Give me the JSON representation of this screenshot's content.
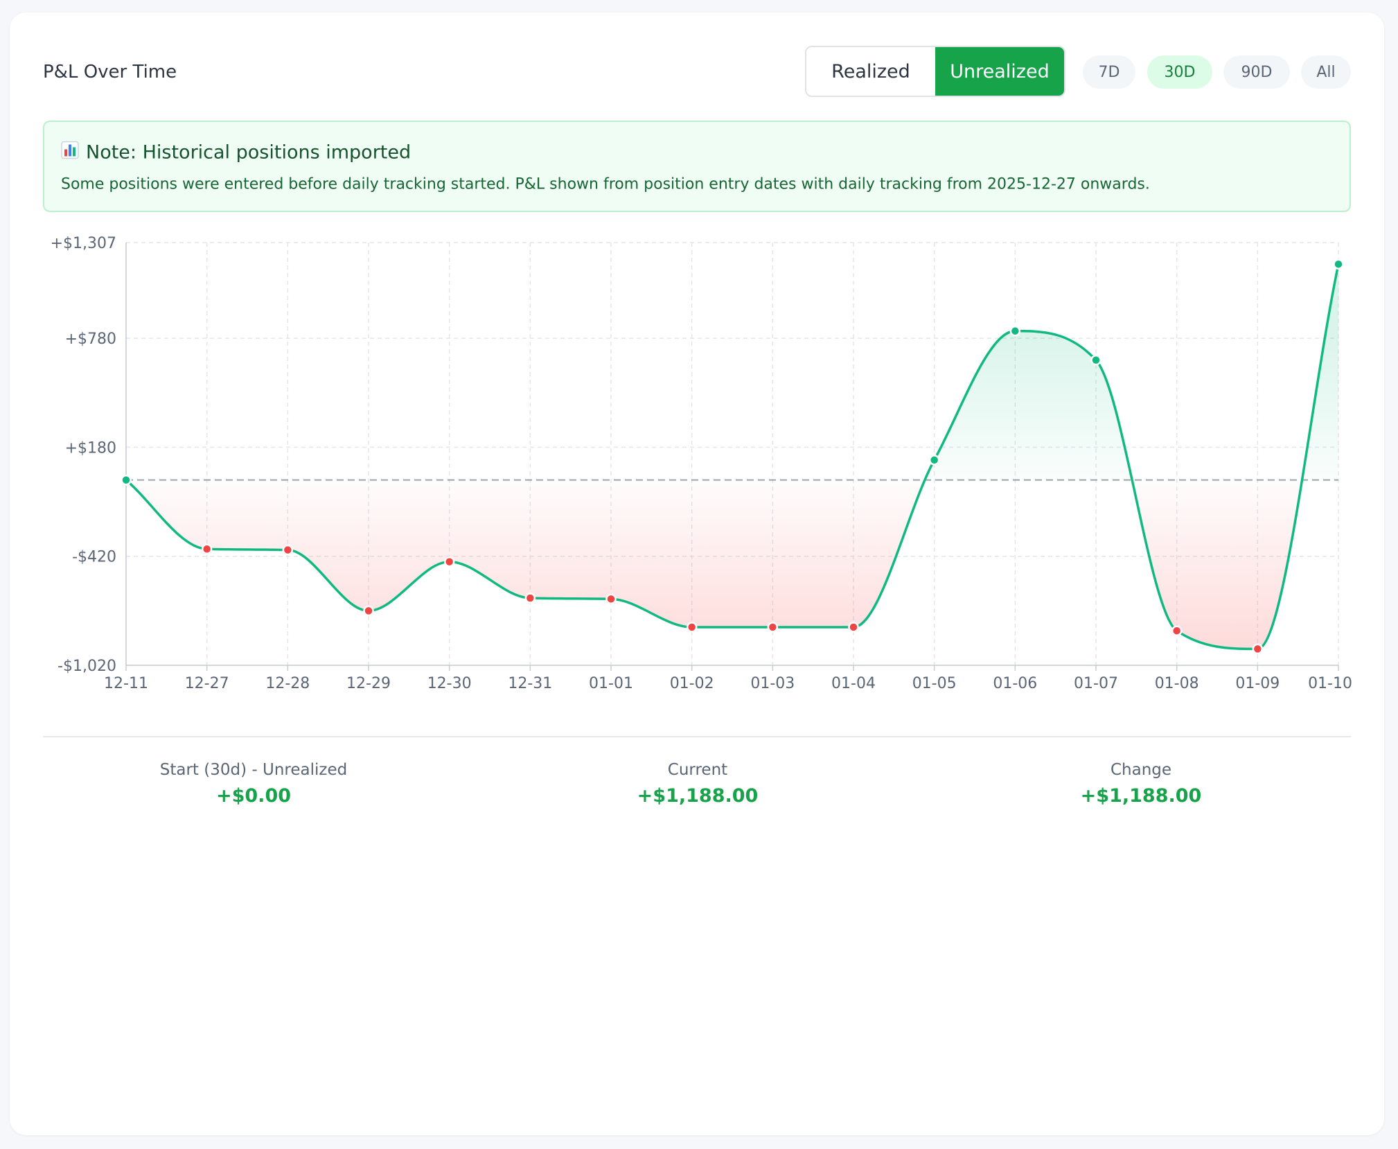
{
  "card": {
    "title": "P&L Over Time",
    "mode_toggle": [
      {
        "label": "Realized",
        "active": false
      },
      {
        "label": "Unrealized",
        "active": true
      }
    ],
    "ranges": [
      {
        "label": "7D",
        "active": false
      },
      {
        "label": "30D",
        "active": true
      },
      {
        "label": "90D",
        "active": false
      },
      {
        "label": "All",
        "active": false
      }
    ]
  },
  "note": {
    "icon": "bar-chart-icon",
    "title": "Note: Historical positions imported",
    "text": "Some positions were entered before daily tracking started. P&L shown from position entry dates with daily tracking from 2025-12-27 onwards."
  },
  "chart_data": {
    "type": "area",
    "categories": [
      "12-11",
      "12-27",
      "12-28",
      "12-29",
      "12-30",
      "12-31",
      "01-01",
      "01-02",
      "01-03",
      "01-04",
      "01-05",
      "01-06",
      "01-07",
      "01-08",
      "01-09",
      "01-10"
    ],
    "values": [
      0,
      -380,
      -385,
      -720,
      -450,
      -650,
      -655,
      -810,
      -810,
      -810,
      110,
      820,
      660,
      -830,
      -930,
      1188
    ],
    "y_ticks": [
      1307,
      780,
      180,
      -420,
      -1020
    ],
    "y_tick_labels": [
      "+$1,307",
      "+$780",
      "+$180",
      "-$420",
      "-$1,020"
    ],
    "ylim": [
      -1020,
      1307
    ],
    "baseline": 0,
    "grid": true,
    "colors": {
      "line": "#10b981",
      "positive_point": "#10b981",
      "negative_point": "#ef4444",
      "positive_fill": "#10b981",
      "negative_fill": "#f87171",
      "grid": "#e3e6ea",
      "baseline": "#9ca3af"
    }
  },
  "stats": [
    {
      "label": "Start (30d) - Unrealized",
      "value": "+$0.00"
    },
    {
      "label": "Current",
      "value": "+$1,188.00"
    },
    {
      "label": "Change",
      "value": "+$1,188.00"
    }
  ]
}
